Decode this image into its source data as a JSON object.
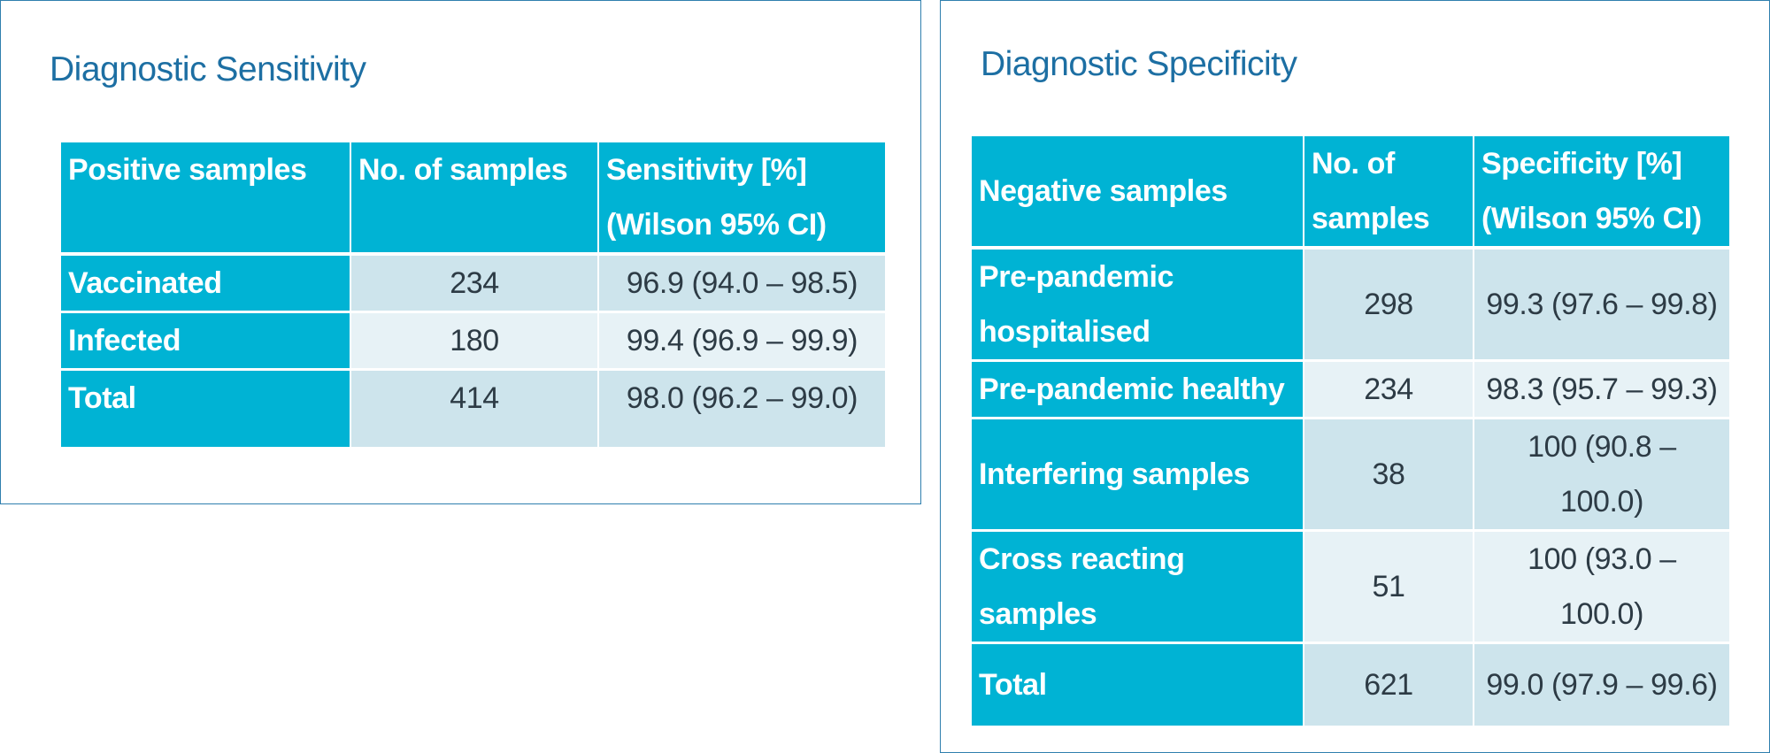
{
  "sensitivity": {
    "title": "Diagnostic Sensitivity",
    "headers": {
      "col1": "Positive samples",
      "col2": "No. of samples",
      "col3_line1": "Sensitivity [%]",
      "col3_line2": "(Wilson 95% CI)"
    },
    "rows": [
      {
        "label": "Vaccinated",
        "count": "234",
        "value": "96.9 (94.0 – 98.5)"
      },
      {
        "label": "Infected",
        "count": "180",
        "value": "99.4 (96.9 – 99.9)"
      },
      {
        "label": "Total",
        "count": "414",
        "value": "98.0 (96.2 – 99.0)"
      }
    ]
  },
  "specificity": {
    "title": "Diagnostic Specificity",
    "headers": {
      "col1": "Negative samples",
      "col2_line1": "No. of",
      "col2_line2": "samples",
      "col3_line1": "Specificity [%]",
      "col3_line2": "(Wilson 95% CI)"
    },
    "rows": [
      {
        "label_line1": "Pre-pandemic",
        "label_line2": "hospitalised",
        "count": "298",
        "value_line1": "99.3 (97.6 – 99.8)",
        "value_line2": ""
      },
      {
        "label_line1": "Pre-pandemic healthy",
        "label_line2": "",
        "count": "234",
        "value_line1": "98.3 (95.7 – 99.3)",
        "value_line2": ""
      },
      {
        "label_line1": "Interfering samples",
        "label_line2": "",
        "count": "38",
        "value_line1": "100 (90.8 –",
        "value_line2": "100.0)"
      },
      {
        "label_line1": "Cross reacting",
        "label_line2": "samples",
        "count": "51",
        "value_line1": "100 (93.0 –",
        "value_line2": "100.0)"
      },
      {
        "label_line1": "Total",
        "label_line2": "",
        "count": "621",
        "value_line1": "99.0 (97.9 – 99.6)",
        "value_line2": ""
      }
    ]
  },
  "colors": {
    "header_cyan": "#00b3d4",
    "cell_dark": "#cde4ec",
    "cell_light": "#e7f2f6",
    "title_blue": "#1d6fa3",
    "border_blue": "#2f7fae"
  }
}
